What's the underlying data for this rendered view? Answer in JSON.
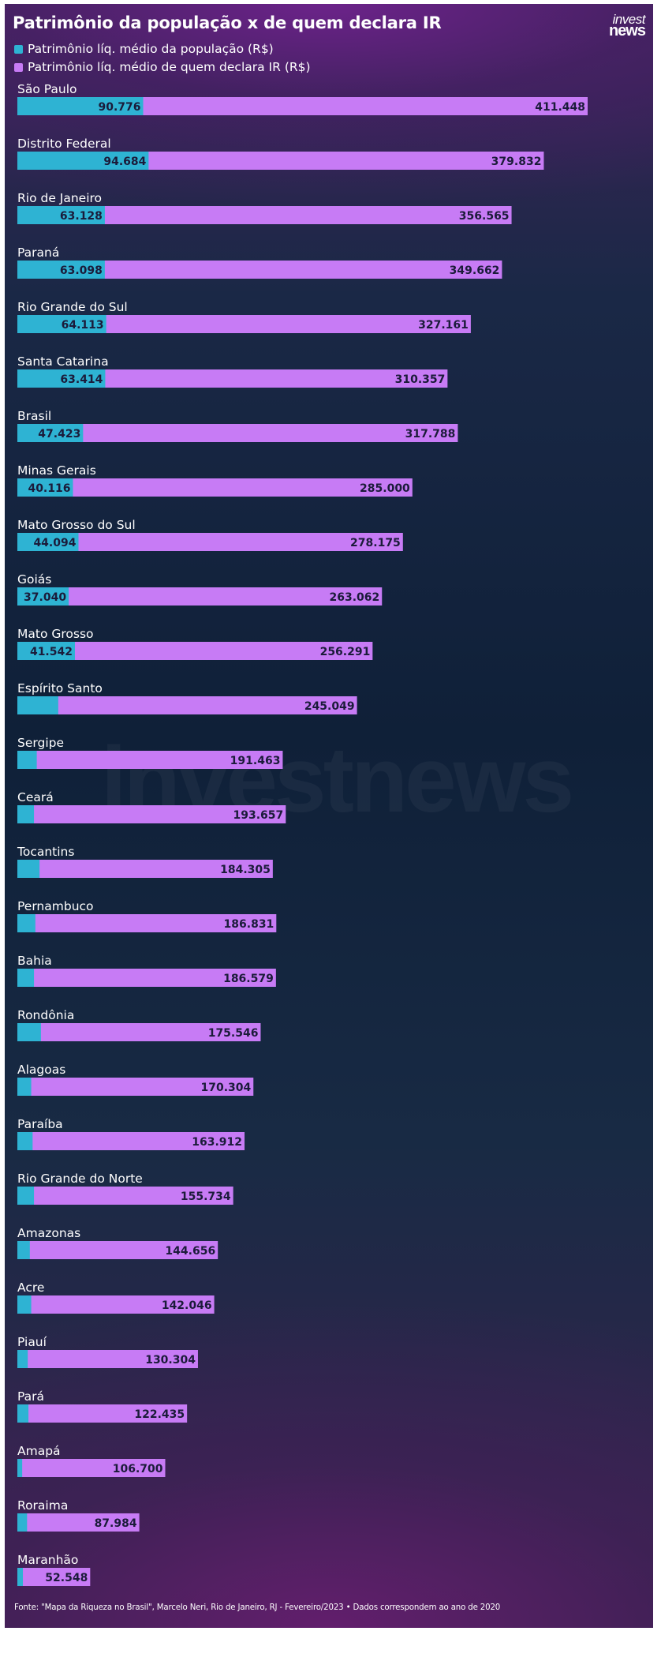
{
  "logo": {
    "line1": "invest",
    "line2": "news"
  },
  "watermark_text": "investnews",
  "source": "Fonte: \"Mapa da Riqueza no Brasil\", Marcelo Neri, Rio de Janeiro, RJ - Fevereiro/2023 • Dados correspondem ao ano de 2020",
  "chart_data": {
    "type": "bar",
    "orientation": "horizontal",
    "title": "Patrimônio da população x de quem declara IR",
    "legend_placement": "top-left",
    "grid": false,
    "xlim": [
      0,
      411448
    ],
    "categories": [
      "São Paulo",
      "Distrito Federal",
      "Rio de Janeiro",
      "Paraná",
      "Rio Grande do Sul",
      "Santa Catarina",
      "Brasil",
      "Minas Gerais",
      "Mato Grosso do Sul",
      "Goiás",
      "Mato Grosso",
      "Espírito Santo",
      "Sergipe",
      "Ceará",
      "Tocantins",
      "Pernambuco",
      "Bahia",
      "Rondônia",
      "Alagoas",
      "Paraíba",
      "Rio Grande do Norte",
      "Amazonas",
      "Acre",
      "Piauí",
      "Pará",
      "Amapá",
      "Roraima",
      "Maranhão"
    ],
    "series": [
      {
        "name": "Patrimônio líq. médio da população (R$)",
        "color": "#2eb3d3",
        "values": [
          90776,
          94684,
          63128,
          63098,
          64113,
          63414,
          47423,
          40116,
          44094,
          37040,
          41542,
          29500,
          14000,
          12000,
          16000,
          13000,
          12000,
          17000,
          10000,
          11000,
          12000,
          9000,
          10000,
          7500,
          8000,
          3500,
          7000,
          4000
        ],
        "labels": [
          "90.776",
          "94.684",
          "63.128",
          "63.098",
          "64.113",
          "63.414",
          "47.423",
          "40.116",
          "44.094",
          "37.040",
          "41.542",
          "",
          "",
          "",
          "",
          "",
          "",
          "",
          "",
          "",
          "",
          "",
          "",
          "",
          "",
          "",
          "",
          ""
        ]
      },
      {
        "name": "Patrimônio líq. médio de quem declara IR (R$)",
        "color": "#c77bf5",
        "values": [
          411448,
          379832,
          356565,
          349662,
          327161,
          310357,
          317788,
          285000,
          278175,
          263062,
          256291,
          245049,
          191463,
          193657,
          184305,
          186831,
          186579,
          175546,
          170304,
          163912,
          155734,
          144656,
          142046,
          130304,
          122435,
          106700,
          87984,
          52548
        ],
        "labels": [
          "411.448",
          "379.832",
          "356.565",
          "349.662",
          "327.161",
          "310.357",
          "317.788",
          "285.000",
          "278.175",
          "263.062",
          "256.291",
          "245.049",
          "191.463",
          "193.657",
          "184.305",
          "186.831",
          "186.579",
          "175.546",
          "170.304",
          "163.912",
          "155.734",
          "144.656",
          "142.046",
          "130.304",
          "122.435",
          "106.700",
          "87.984",
          "52.548"
        ]
      }
    ]
  }
}
